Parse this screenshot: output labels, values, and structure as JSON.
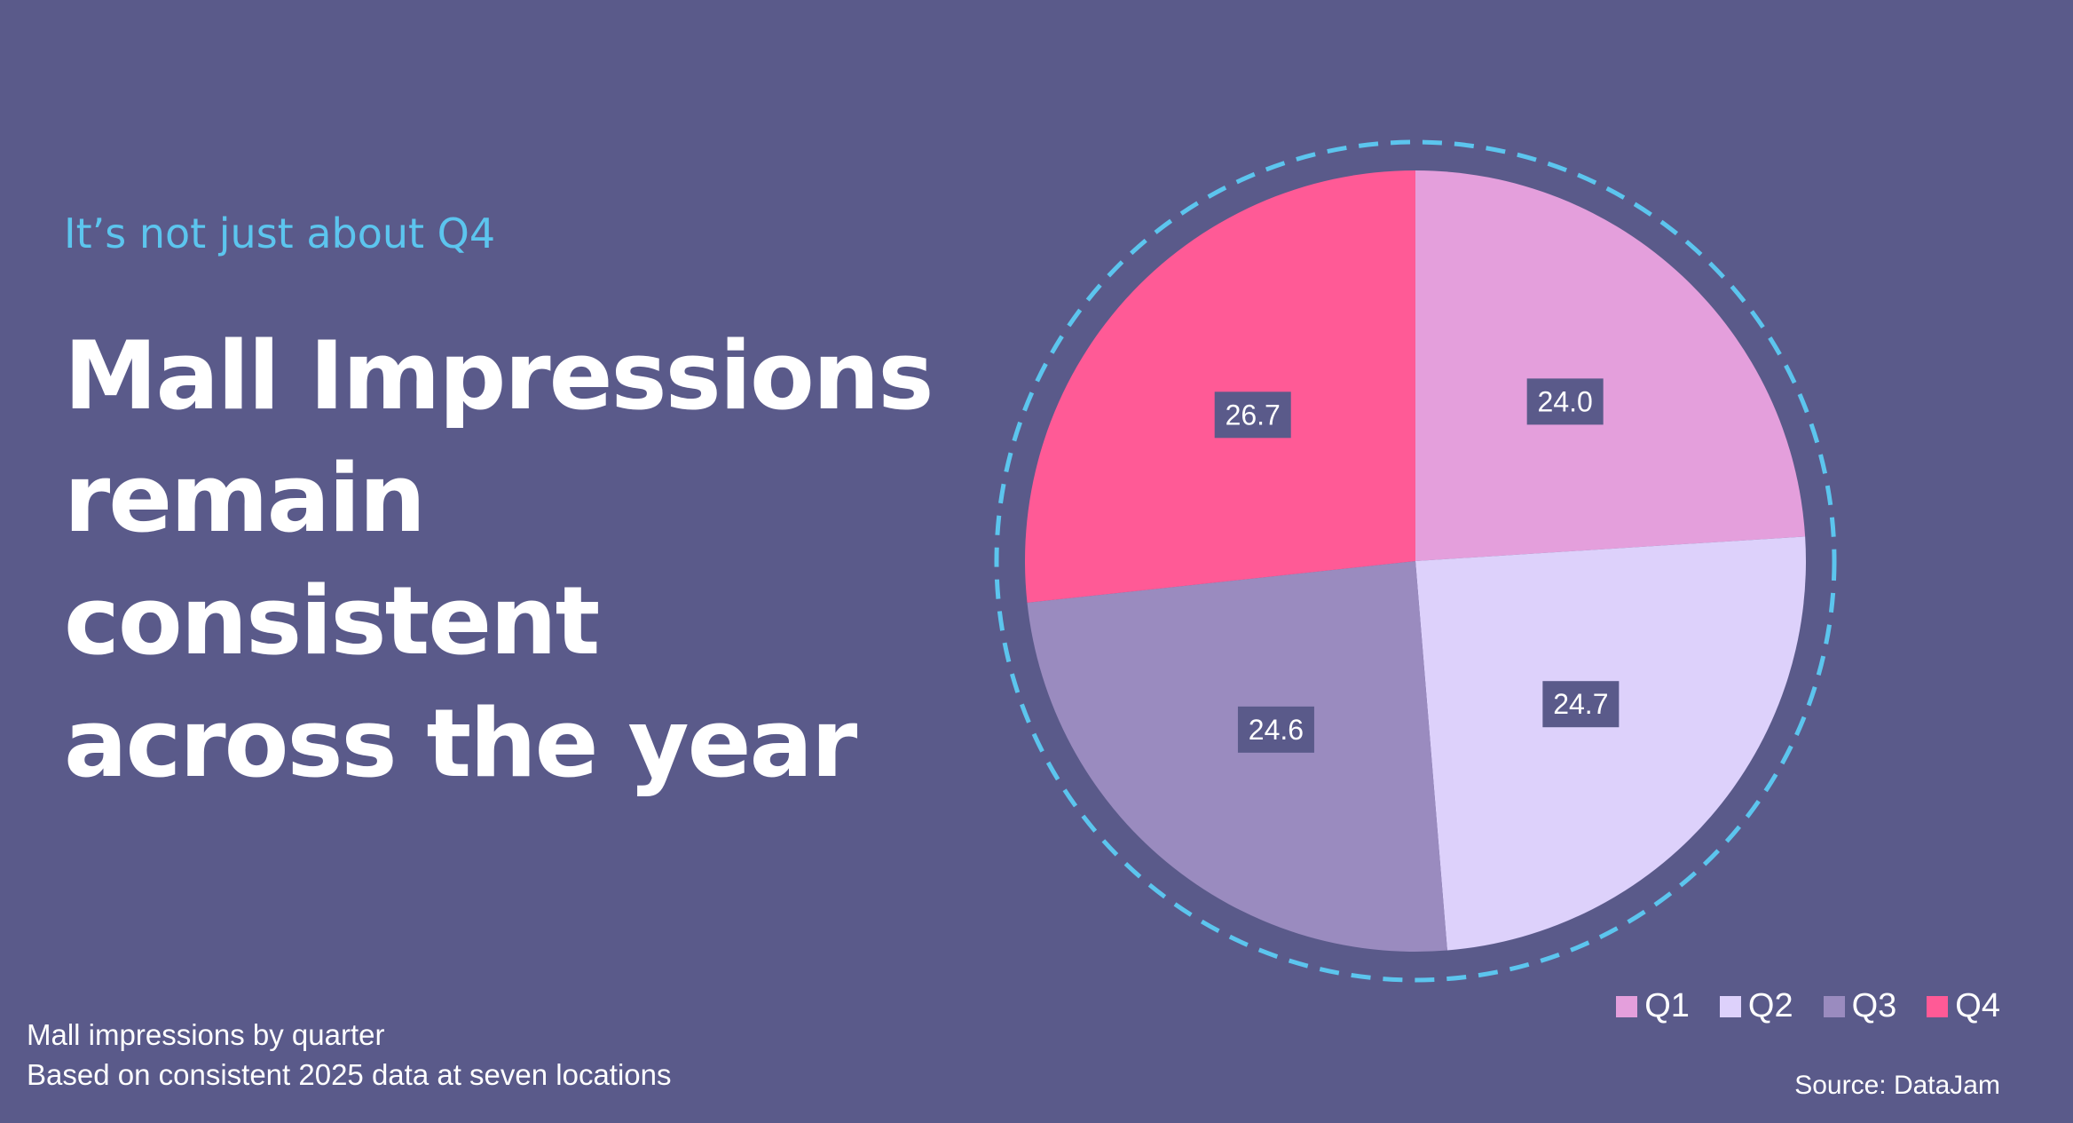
{
  "eyebrow": "It’s not just about Q4",
  "headline": [
    "Mall Impressions",
    "remain",
    "consistent",
    "across the year"
  ],
  "footnote": {
    "line1": "Mall impressions by quarter",
    "line2": "Based on consistent 2025 data at seven locations"
  },
  "source": "Source: DataJam",
  "colors": {
    "background": "#5a5a8a",
    "accent": "#5cc5ee",
    "label_box": "#5a5a8a"
  },
  "chart_data": {
    "type": "pie",
    "categories": [
      "Q1",
      "Q2",
      "Q3",
      "Q4"
    ],
    "values": [
      24.0,
      24.7,
      24.6,
      26.7
    ],
    "labels": [
      "24.0",
      "24.7",
      "24.6",
      "26.7"
    ],
    "colors": [
      "#e49fdc",
      "#ddd1fb",
      "#9a8bbf",
      "#ff5a96"
    ],
    "legend_position": "bottom-right",
    "start_angle_deg": 0,
    "direction": "clockwise",
    "outline": "dashed-ring"
  }
}
